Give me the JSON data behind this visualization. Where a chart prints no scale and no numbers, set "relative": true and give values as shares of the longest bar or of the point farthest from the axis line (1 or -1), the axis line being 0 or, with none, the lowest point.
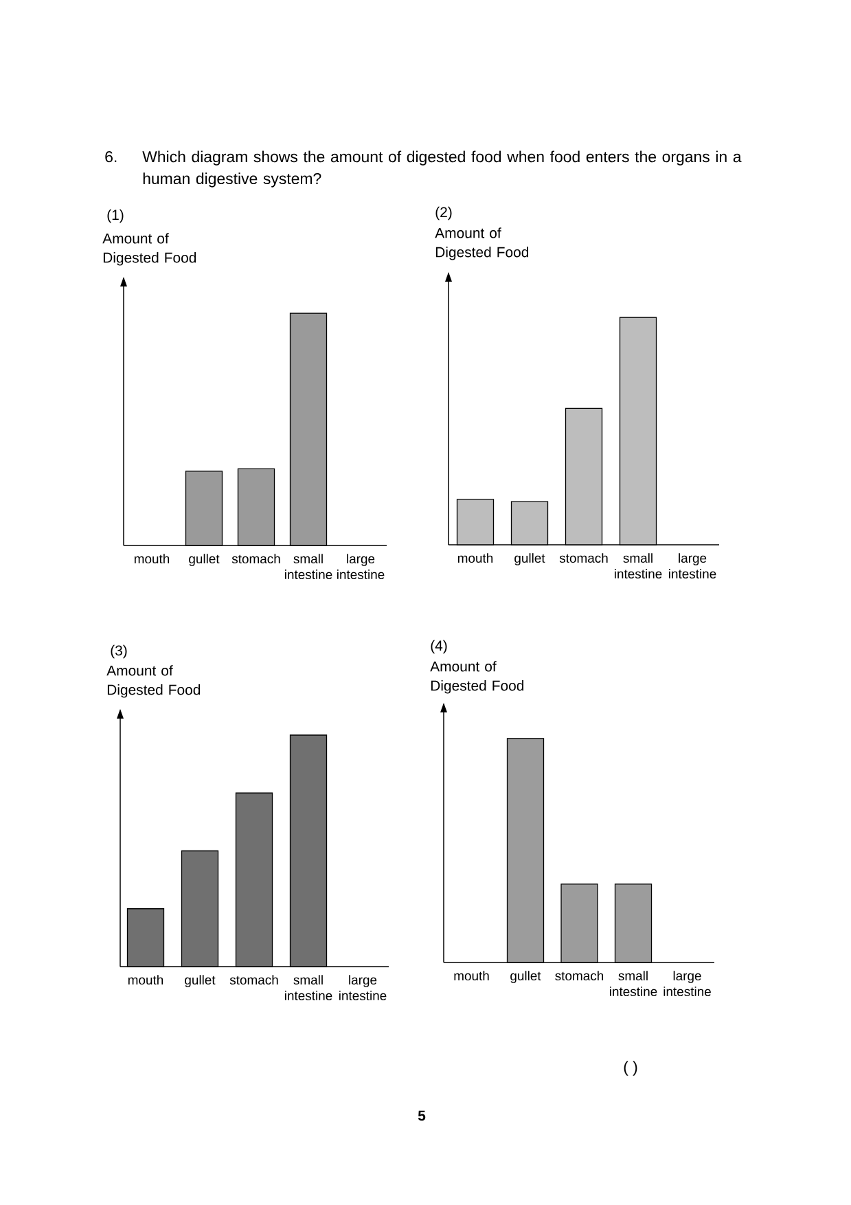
{
  "chart_data": [
    {
      "type": "bar",
      "title": "(1)",
      "ylabel": "Amount of Digested Food",
      "categories": [
        "mouth",
        "gullet",
        "stomach",
        "small intestine",
        "large intestine"
      ],
      "values": [
        0,
        0.32,
        0.33,
        1,
        0
      ],
      "color": "#9a9a9a",
      "relative": true,
      "annotations": [
        "6.",
        "Which diagram shows the amount of digested food when food enters the organs in a human digestive system?"
      ]
    },
    {
      "type": "bar",
      "title": "(2)",
      "ylabel": "Amount of Digested Food",
      "categories": [
        "mouth",
        "gullet",
        "stomach",
        "small intestine",
        "large intestine"
      ],
      "values": [
        0.2,
        0.19,
        0.6,
        1,
        0
      ],
      "color": "#bdbdbd",
      "relative": true
    },
    {
      "type": "bar",
      "title": "(3)",
      "ylabel": "Amount of Digested Food",
      "categories": [
        "mouth",
        "gullet",
        "stomach",
        "small intestine",
        "large intestine"
      ],
      "values": [
        0.25,
        0.5,
        0.75,
        1,
        0
      ],
      "color": "#707070",
      "relative": true
    },
    {
      "type": "bar",
      "title": "(4)",
      "ylabel": "Amount of Digested Food",
      "categories": [
        "mouth",
        "gullet",
        "stomach",
        "small intestine",
        "large intestine"
      ],
      "values": [
        0,
        1,
        0.35,
        0.35,
        0
      ],
      "color": "#9c9c9c",
      "relative": true,
      "annotations": [
        "( )",
        "5"
      ]
    }
  ]
}
